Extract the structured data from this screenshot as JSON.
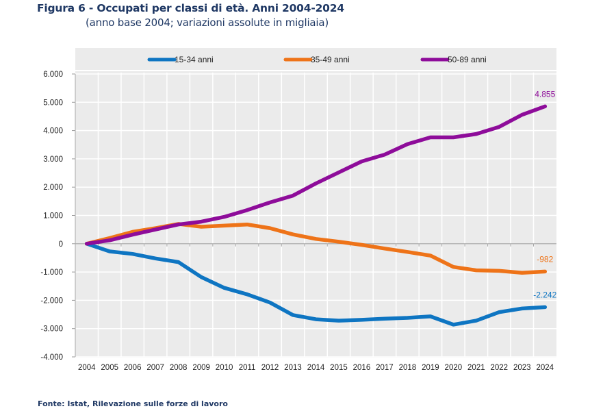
{
  "header": {
    "title": "Figura 6 - Occupati per classi di età. Anni 2004-2024",
    "subtitle": "(anno base 2004; variazioni assolute in migliaia)"
  },
  "footer": {
    "source": "Fonte: Istat, Rilevazione sulle forze di lavoro"
  },
  "chart_data": {
    "type": "line",
    "title": "Figura 6 - Occupati per classi di età. Anni 2004-2024",
    "subtitle": "(anno base 2004; variazioni assolute in migliaia)",
    "xlabel": "",
    "ylabel": "",
    "categories": [
      "2004",
      "2005",
      "2006",
      "2007",
      "2008",
      "2009",
      "2010",
      "2011",
      "2012",
      "2013",
      "2014",
      "2015",
      "2016",
      "2017",
      "2018",
      "2019",
      "2020",
      "2021",
      "2022",
      "2023",
      "2024"
    ],
    "ylim": [
      -4000,
      6000
    ],
    "yticks": [
      6000,
      5000,
      4000,
      3000,
      2000,
      1000,
      0,
      -1000,
      -2000,
      -3000,
      -4000
    ],
    "ytick_labels": [
      "6.000",
      "5.000",
      "4.000",
      "3.000",
      "2.000",
      "1.000",
      "0",
      "-1.000",
      "-2.000",
      "-3.000",
      "-4.000"
    ],
    "grid": true,
    "legend_position": "top",
    "background": "#ebebeb",
    "series": [
      {
        "name": "15-34 anni",
        "color": "#0e75c2",
        "values": [
          0,
          -270,
          -360,
          -520,
          -650,
          -1180,
          -1560,
          -1790,
          -2080,
          -2520,
          -2670,
          -2720,
          -2690,
          -2650,
          -2620,
          -2570,
          -2860,
          -2720,
          -2420,
          -2290,
          -2242
        ],
        "end_label": "-2.242"
      },
      {
        "name": "35-49 anni",
        "color": "#ee7318",
        "values": [
          0,
          200,
          420,
          550,
          700,
          600,
          640,
          680,
          550,
          330,
          170,
          70,
          -40,
          -170,
          -290,
          -420,
          -820,
          -940,
          -960,
          -1030,
          -982
        ],
        "end_label": "-982"
      },
      {
        "name": "50-89 anni",
        "color": "#8e0c9a",
        "values": [
          0,
          120,
          320,
          500,
          680,
          780,
          950,
          1190,
          1460,
          1700,
          2130,
          2520,
          2910,
          3150,
          3520,
          3760,
          3760,
          3880,
          4130,
          4560,
          4855
        ],
        "end_label": "4.855"
      }
    ]
  }
}
